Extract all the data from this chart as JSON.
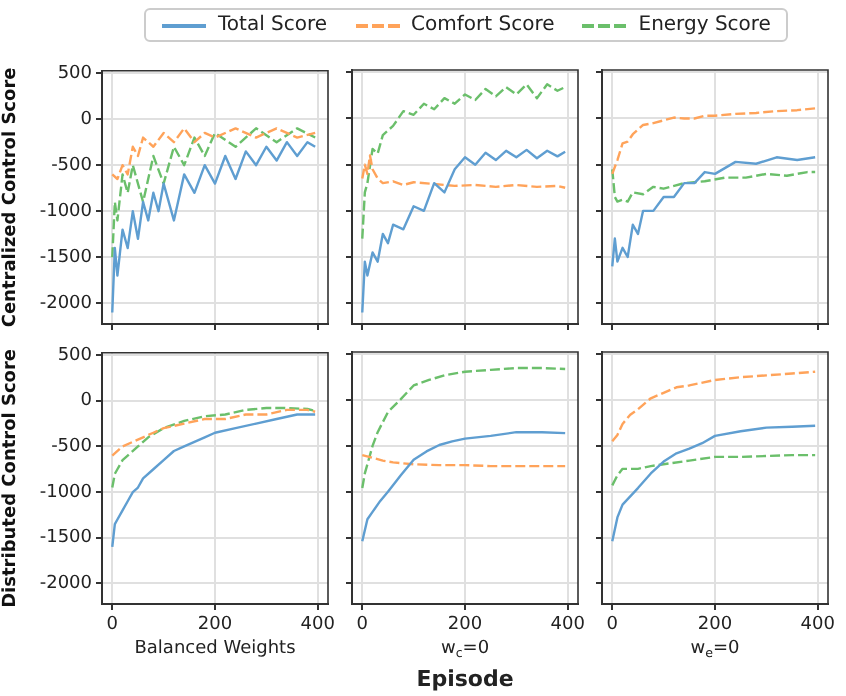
{
  "chart_data": [
    {
      "type": "line",
      "ylabel": "Centralized Control Score",
      "xlim": [
        -20,
        420
      ],
      "ylim": [
        -2225,
        525
      ],
      "xticks": [
        0,
        200,
        400
      ],
      "yticks": [
        -2000,
        -1500,
        -1000,
        -500,
        0,
        500
      ],
      "grid": true,
      "legend": "top",
      "tick_labels": "y",
      "series": [
        {
          "name": "Total Score",
          "color": "#5f9ed1",
          "line_style": "solid",
          "x": [
            0,
            5,
            10,
            20,
            30,
            40,
            50,
            60,
            70,
            80,
            90,
            100,
            120,
            140,
            160,
            180,
            200,
            220,
            240,
            260,
            280,
            300,
            320,
            340,
            360,
            380,
            395
          ],
          "values": [
            -2100,
            -1400,
            -1700,
            -1200,
            -1400,
            -1000,
            -1300,
            -900,
            -1100,
            -800,
            -1000,
            -700,
            -1100,
            -600,
            -800,
            -500,
            -700,
            -400,
            -650,
            -350,
            -500,
            -300,
            -450,
            -250,
            -400,
            -250,
            -300
          ]
        },
        {
          "name": "Comfort Score",
          "color": "#ffa35a",
          "line_style": "dashed",
          "x": [
            0,
            10,
            20,
            30,
            40,
            50,
            60,
            80,
            100,
            120,
            140,
            160,
            180,
            200,
            240,
            280,
            320,
            360,
            395
          ],
          "values": [
            -600,
            -650,
            -500,
            -600,
            -300,
            -400,
            -200,
            -300,
            -150,
            -250,
            -100,
            -250,
            -150,
            -200,
            -100,
            -200,
            -100,
            -200,
            -150
          ]
        },
        {
          "name": "Energy Score",
          "color": "#6bbf6b",
          "line_style": "dashed",
          "x": [
            0,
            5,
            10,
            20,
            30,
            40,
            60,
            80,
            100,
            120,
            140,
            160,
            180,
            200,
            240,
            280,
            320,
            360,
            395
          ],
          "values": [
            -1500,
            -900,
            -1100,
            -600,
            -800,
            -500,
            -900,
            -400,
            -700,
            -300,
            -500,
            -200,
            -400,
            -150,
            -300,
            -100,
            -250,
            -100,
            -200
          ]
        }
      ]
    },
    {
      "type": "line",
      "xlim": [
        -20,
        420
      ],
      "ylim": [
        -2225,
        525
      ],
      "xticks": [
        0,
        200,
        400
      ],
      "yticks": [
        -2000,
        -1500,
        -1000,
        -500,
        0,
        500
      ],
      "grid": true,
      "tick_labels": false,
      "series": [
        {
          "color": "#5f9ed1",
          "line_style": "solid",
          "x": [
            0,
            5,
            10,
            20,
            30,
            40,
            50,
            60,
            80,
            100,
            120,
            140,
            160,
            180,
            200,
            220,
            240,
            260,
            280,
            300,
            320,
            340,
            360,
            380,
            395
          ],
          "values": [
            -2100,
            -1550,
            -1700,
            -1450,
            -1550,
            -1250,
            -1350,
            -1150,
            -1200,
            -950,
            -1000,
            -700,
            -800,
            -550,
            -420,
            -500,
            -370,
            -450,
            -350,
            -420,
            -340,
            -430,
            -350,
            -410,
            -360
          ]
        },
        {
          "color": "#ffa35a",
          "line_style": "dashed",
          "x": [
            0,
            5,
            10,
            15,
            20,
            30,
            40,
            60,
            80,
            100,
            140,
            180,
            220,
            260,
            300,
            340,
            380,
            395
          ],
          "values": [
            -650,
            -500,
            -600,
            -400,
            -550,
            -650,
            -700,
            -680,
            -720,
            -690,
            -710,
            -730,
            -720,
            -740,
            -720,
            -740,
            -730,
            -750
          ]
        },
        {
          "color": "#6bbf6b",
          "line_style": "dashed",
          "x": [
            0,
            5,
            10,
            20,
            30,
            40,
            60,
            80,
            100,
            120,
            140,
            160,
            180,
            200,
            220,
            240,
            260,
            280,
            300,
            320,
            340,
            360,
            380,
            395
          ],
          "values": [
            -1300,
            -800,
            -700,
            -330,
            -380,
            -180,
            -80,
            80,
            40,
            160,
            100,
            220,
            160,
            260,
            200,
            320,
            240,
            340,
            260,
            370,
            220,
            370,
            300,
            340
          ]
        }
      ]
    },
    {
      "type": "line",
      "xlim": [
        -20,
        420
      ],
      "ylim": [
        -2225,
        525
      ],
      "xticks": [
        0,
        200,
        400
      ],
      "yticks": [
        -2000,
        -1500,
        -1000,
        -500,
        0,
        500
      ],
      "grid": true,
      "tick_labels": false,
      "series": [
        {
          "color": "#5f9ed1",
          "line_style": "solid",
          "x": [
            0,
            5,
            10,
            20,
            30,
            40,
            50,
            60,
            80,
            100,
            120,
            140,
            160,
            180,
            200,
            240,
            280,
            320,
            360,
            395
          ],
          "values": [
            -1600,
            -1300,
            -1550,
            -1400,
            -1500,
            -1150,
            -1250,
            -1000,
            -1000,
            -850,
            -850,
            -700,
            -700,
            -580,
            -600,
            -470,
            -490,
            -420,
            -450,
            -420
          ]
        },
        {
          "color": "#ffa35a",
          "line_style": "dashed",
          "x": [
            0,
            10,
            20,
            30,
            40,
            60,
            80,
            100,
            120,
            140,
            160,
            180,
            200,
            240,
            280,
            320,
            360,
            395
          ],
          "values": [
            -600,
            -450,
            -270,
            -250,
            -170,
            -70,
            -50,
            -20,
            10,
            0,
            0,
            30,
            30,
            50,
            60,
            80,
            90,
            110
          ]
        },
        {
          "color": "#6bbf6b",
          "line_style": "dashed",
          "x": [
            0,
            5,
            10,
            20,
            30,
            40,
            60,
            80,
            100,
            140,
            180,
            220,
            260,
            300,
            340,
            380,
            395
          ],
          "values": [
            -550,
            -850,
            -900,
            -880,
            -900,
            -800,
            -820,
            -740,
            -760,
            -700,
            -680,
            -640,
            -640,
            -600,
            -620,
            -580,
            -580
          ]
        }
      ]
    },
    {
      "type": "line",
      "ylabel": "Distributed Control Score",
      "xlabel": "Balanced Weights",
      "xlim": [
        -20,
        420
      ],
      "ylim": [
        -2225,
        525
      ],
      "xticks": [
        0,
        200,
        400
      ],
      "yticks": [
        -2000,
        -1500,
        -1000,
        -500,
        0,
        500
      ],
      "grid": true,
      "series": [
        {
          "color": "#5f9ed1",
          "line_style": "solid",
          "x": [
            0,
            5,
            10,
            20,
            30,
            40,
            50,
            60,
            80,
            100,
            120,
            140,
            160,
            180,
            200,
            240,
            280,
            320,
            360,
            395
          ],
          "values": [
            -1600,
            -1350,
            -1300,
            -1200,
            -1100,
            -1000,
            -950,
            -850,
            -750,
            -650,
            -550,
            -500,
            -450,
            -400,
            -350,
            -300,
            -250,
            -200,
            -150,
            -150
          ]
        },
        {
          "color": "#ffa35a",
          "line_style": "dashed",
          "x": [
            0,
            20,
            40,
            60,
            80,
            100,
            140,
            180,
            220,
            260,
            300,
            340,
            380,
            395
          ],
          "values": [
            -600,
            -500,
            -450,
            -400,
            -350,
            -300,
            -250,
            -200,
            -200,
            -150,
            -150,
            -100,
            -100,
            -120
          ]
        },
        {
          "color": "#6bbf6b",
          "line_style": "dashed",
          "x": [
            0,
            5,
            10,
            20,
            30,
            50,
            70,
            100,
            140,
            180,
            220,
            260,
            300,
            340,
            380,
            395
          ],
          "values": [
            -950,
            -800,
            -750,
            -650,
            -600,
            -500,
            -400,
            -300,
            -220,
            -170,
            -150,
            -100,
            -80,
            -80,
            -90,
            -110
          ]
        }
      ]
    },
    {
      "type": "line",
      "xlabel": "w$_{c}$=0",
      "annotations": [
        "Episode"
      ],
      "xlim": [
        -20,
        420
      ],
      "ylim": [
        -2225,
        525
      ],
      "xticks": [
        0,
        200,
        400
      ],
      "yticks": [
        -2000,
        -1500,
        -1000,
        -500,
        0,
        500
      ],
      "grid": true,
      "tick_labels": "x",
      "series": [
        {
          "color": "#5f9ed1",
          "line_style": "solid",
          "x": [
            0,
            10,
            20,
            35,
            50,
            75,
            100,
            125,
            150,
            175,
            200,
            250,
            300,
            350,
            395
          ],
          "values": [
            -1540,
            -1300,
            -1220,
            -1100,
            -1000,
            -820,
            -650,
            -560,
            -490,
            -450,
            -420,
            -390,
            -350,
            -350,
            -360
          ]
        },
        {
          "color": "#ffa35a",
          "line_style": "dashed",
          "x": [
            0,
            20,
            40,
            60,
            80,
            100,
            150,
            200,
            250,
            300,
            350,
            395
          ],
          "values": [
            -600,
            -630,
            -660,
            -680,
            -690,
            -700,
            -710,
            -710,
            -720,
            -720,
            -720,
            -720
          ]
        },
        {
          "color": "#6bbf6b",
          "line_style": "dashed",
          "x": [
            0,
            5,
            10,
            20,
            30,
            50,
            75,
            100,
            130,
            160,
            200,
            250,
            300,
            350,
            395
          ],
          "values": [
            -960,
            -800,
            -700,
            -500,
            -350,
            -130,
            10,
            160,
            220,
            270,
            310,
            330,
            350,
            350,
            340
          ]
        }
      ]
    },
    {
      "type": "line",
      "xlabel": "w$_{e}$=0",
      "xlim": [
        -20,
        420
      ],
      "ylim": [
        -2225,
        525
      ],
      "xticks": [
        0,
        200,
        400
      ],
      "yticks": [
        -2000,
        -1500,
        -1000,
        -500,
        0,
        500
      ],
      "grid": true,
      "tick_labels": "x",
      "series": [
        {
          "color": "#5f9ed1",
          "line_style": "solid",
          "x": [
            0,
            10,
            20,
            35,
            50,
            75,
            100,
            125,
            150,
            175,
            200,
            250,
            300,
            350,
            395
          ],
          "values": [
            -1540,
            -1280,
            -1140,
            -1050,
            -960,
            -800,
            -670,
            -580,
            -530,
            -470,
            -390,
            -340,
            -300,
            -290,
            -280
          ]
        },
        {
          "color": "#ffa35a",
          "line_style": "dashed",
          "x": [
            0,
            10,
            20,
            35,
            50,
            75,
            100,
            125,
            150,
            200,
            250,
            300,
            350,
            395
          ],
          "values": [
            -450,
            -380,
            -260,
            -160,
            -100,
            20,
            80,
            140,
            160,
            220,
            250,
            270,
            290,
            310
          ]
        },
        {
          "color": "#6bbf6b",
          "line_style": "dashed",
          "x": [
            0,
            10,
            20,
            35,
            50,
            75,
            100,
            150,
            200,
            250,
            300,
            350,
            395
          ],
          "values": [
            -930,
            -820,
            -750,
            -750,
            -750,
            -720,
            -700,
            -660,
            -620,
            -620,
            -610,
            -600,
            -600
          ]
        }
      ]
    }
  ]
}
